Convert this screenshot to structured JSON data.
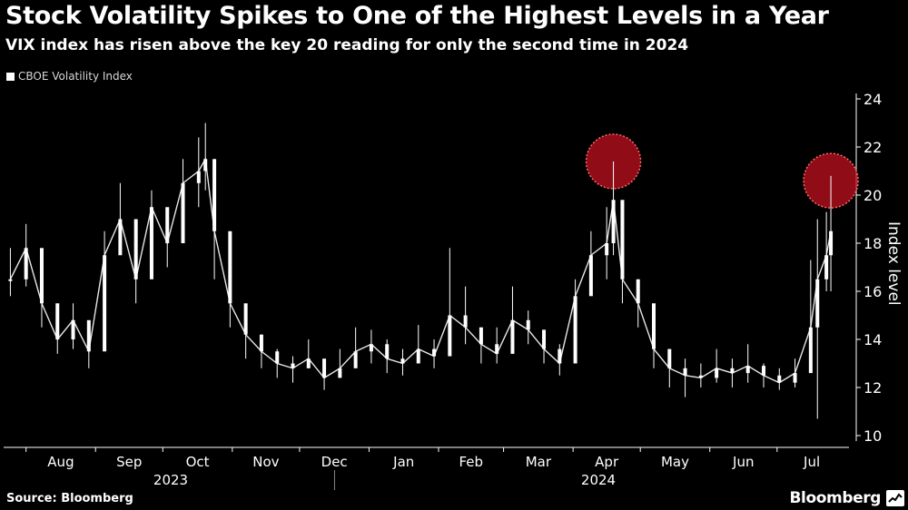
{
  "header": {
    "title": "Stock Volatility Spikes to One of the Highest Levels in a Year",
    "subtitle": "VIX index has risen above the key 20 reading for only the second time in 2024"
  },
  "footer": {
    "source": "Source: Bloomberg",
    "brand": "Bloomberg",
    "brand_icon": "bloomberg-chart-icon"
  },
  "colors": {
    "background": "#000000",
    "series": "#ffffff",
    "highlight": "#c0101e",
    "axis": "#ffffff"
  },
  "chart_data": {
    "type": "candlestick",
    "title": "Stock Volatility Spikes to One of the Highest Levels in a Year",
    "subtitle": "VIX index has risen above the key 20 reading for only the second time in 2024",
    "ylabel": "Index level",
    "xlabel": "",
    "ylim": [
      10,
      24
    ],
    "yticks": [
      10,
      12,
      14,
      16,
      18,
      20,
      22,
      24
    ],
    "x_month_labels": [
      "Aug",
      "Sep",
      "Oct",
      "Nov",
      "Dec",
      "Jan",
      "Feb",
      "Mar",
      "Apr",
      "May",
      "Jun",
      "Jul"
    ],
    "x_year_labels": [
      "2023",
      "2024"
    ],
    "grid": false,
    "legend_position": "top-left",
    "series": [
      {
        "name": "CBOE Volatility Index",
        "x": [
          "2023-07-25",
          "2023-08-01",
          "2023-08-08",
          "2023-08-15",
          "2023-08-22",
          "2023-08-29",
          "2023-09-05",
          "2023-09-12",
          "2023-09-19",
          "2023-09-26",
          "2023-10-03",
          "2023-10-10",
          "2023-10-17",
          "2023-10-20",
          "2023-10-24",
          "2023-10-31",
          "2023-11-07",
          "2023-11-14",
          "2023-11-21",
          "2023-11-28",
          "2023-12-05",
          "2023-12-12",
          "2023-12-19",
          "2023-12-26",
          "2024-01-02",
          "2024-01-09",
          "2024-01-16",
          "2024-01-23",
          "2024-01-30",
          "2024-02-06",
          "2024-02-13",
          "2024-02-20",
          "2024-02-27",
          "2024-03-05",
          "2024-03-12",
          "2024-03-19",
          "2024-03-26",
          "2024-04-02",
          "2024-04-09",
          "2024-04-16",
          "2024-04-19",
          "2024-04-23",
          "2024-04-30",
          "2024-05-07",
          "2024-05-14",
          "2024-05-21",
          "2024-05-28",
          "2024-06-04",
          "2024-06-11",
          "2024-06-18",
          "2024-06-25",
          "2024-07-02",
          "2024-07-09",
          "2024-07-16",
          "2024-07-19",
          "2024-07-23",
          "2024-07-25"
        ],
        "close": [
          16.5,
          17.8,
          15.5,
          14.0,
          14.8,
          13.5,
          17.5,
          19.0,
          16.5,
          19.5,
          18.0,
          20.5,
          21.0,
          21.5,
          18.5,
          15.5,
          14.2,
          13.5,
          13.0,
          12.8,
          13.2,
          12.4,
          12.8,
          13.5,
          13.8,
          13.2,
          13.0,
          13.6,
          13.3,
          15.0,
          14.5,
          13.8,
          13.4,
          14.8,
          14.4,
          13.6,
          13.0,
          15.8,
          17.5,
          18.0,
          19.8,
          16.5,
          15.5,
          13.6,
          12.8,
          12.5,
          12.4,
          12.8,
          12.6,
          12.9,
          12.5,
          12.2,
          12.6,
          14.5,
          16.5,
          17.5,
          18.5
        ],
        "high": [
          17.8,
          18.8,
          16.5,
          15.0,
          15.5,
          14.5,
          18.5,
          20.5,
          17.5,
          20.2,
          19.0,
          21.5,
          22.4,
          23.0,
          19.0,
          16.5,
          15.0,
          14.2,
          13.6,
          13.3,
          14.0,
          13.0,
          13.6,
          14.5,
          14.4,
          14.0,
          13.6,
          14.6,
          14.0,
          17.8,
          16.2,
          14.5,
          14.5,
          16.2,
          15.2,
          14.4,
          13.8,
          16.5,
          18.5,
          19.5,
          21.4,
          17.5,
          16.5,
          14.8,
          13.6,
          13.2,
          13.0,
          13.6,
          13.2,
          13.8,
          13.0,
          12.8,
          13.2,
          17.3,
          19.0,
          19.3,
          20.8
        ],
        "low": [
          15.8,
          16.2,
          14.5,
          13.4,
          13.6,
          12.8,
          16.0,
          17.8,
          15.5,
          17.2,
          17.0,
          19.0,
          19.5,
          20.2,
          16.5,
          14.5,
          13.2,
          12.8,
          12.4,
          12.2,
          12.8,
          11.9,
          12.4,
          12.8,
          13.0,
          12.6,
          12.5,
          13.0,
          12.8,
          14.0,
          13.8,
          13.0,
          13.0,
          13.8,
          13.8,
          13.0,
          12.5,
          14.5,
          16.0,
          16.5,
          17.5,
          15.5,
          14.5,
          12.8,
          12.0,
          11.6,
          12.0,
          12.2,
          12.0,
          12.2,
          12.0,
          11.9,
          12.0,
          13.0,
          10.7,
          16.0,
          16.0
        ]
      }
    ],
    "annotations": [
      {
        "type": "highlight-circle",
        "x": "2024-04-19",
        "y": 21.4
      },
      {
        "type": "highlight-circle",
        "x": "2024-07-25",
        "y": 20.6
      }
    ]
  }
}
